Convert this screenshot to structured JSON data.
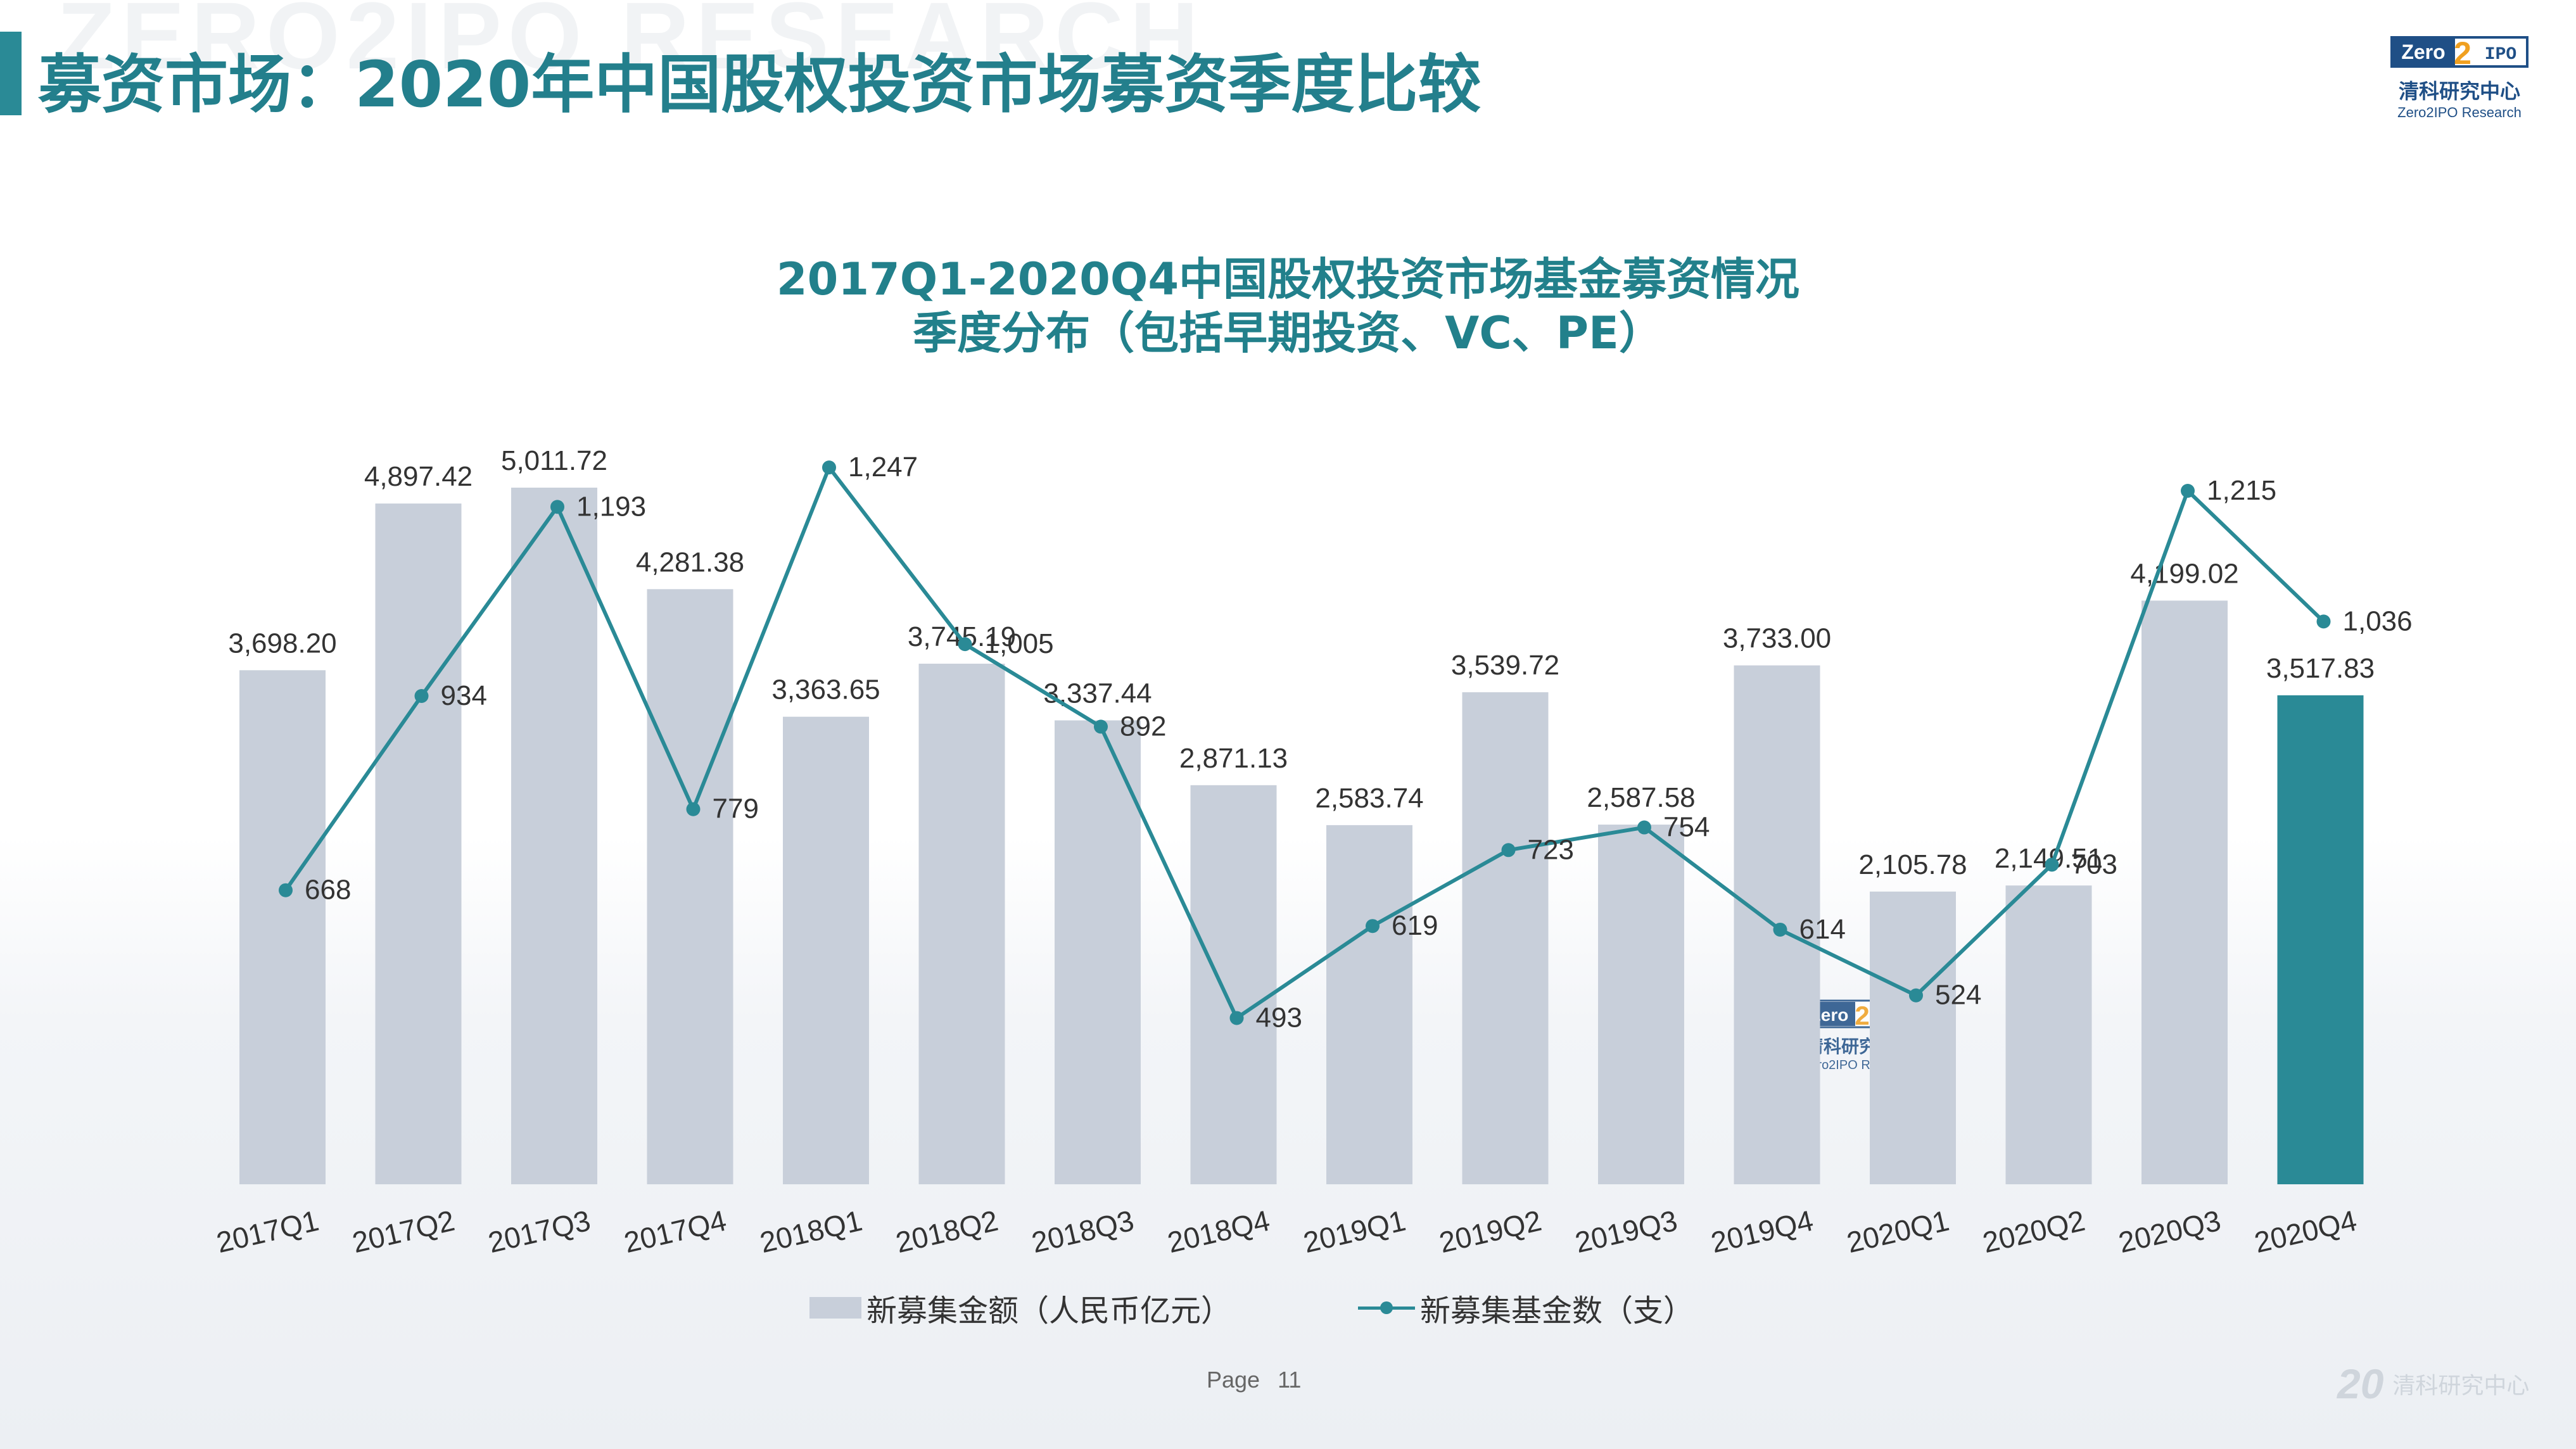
{
  "header": {
    "title": "募资市场：2020年中国股权投资市场募资季度比较",
    "watermark": "ZERO2IPO RESEARCH"
  },
  "logo": {
    "box_left": "Zero",
    "box_digit": "2",
    "box_right": "IPO",
    "cn_name": "清科研究中心",
    "en_name": "Zero2IPO Research"
  },
  "colors": {
    "accent": "#2a8a96",
    "title": "#22808b",
    "bar": "#c8cfda",
    "bar_highlight": "#2a8a96",
    "line": "#2a8a96"
  },
  "chart_data": {
    "type": "bar+line",
    "title_line1": "2017Q1-2020Q4中国股权投资市场基金募资情况",
    "title_line2": "季度分布（包括早期投资、VC、PE）",
    "categories": [
      "2017Q1",
      "2017Q2",
      "2017Q3",
      "2017Q4",
      "2018Q1",
      "2018Q2",
      "2018Q3",
      "2018Q4",
      "2019Q1",
      "2019Q2",
      "2019Q3",
      "2019Q4",
      "2020Q1",
      "2020Q2",
      "2020Q3",
      "2020Q4"
    ],
    "series": [
      {
        "name": "新募集金额（人民币亿元）",
        "type": "bar",
        "values": [
          3698.2,
          4897.42,
          5011.72,
          4281.38,
          3363.65,
          3745.19,
          3337.44,
          2871.13,
          2583.74,
          3539.72,
          2587.58,
          3733.0,
          2105.78,
          2149.51,
          4199.02,
          3517.83
        ],
        "labels": [
          "3,698.20",
          "4,897.42",
          "5,011.72",
          "4,281.38",
          "3,363.65",
          "3,745.19",
          "3,337.44",
          "2,871.13",
          "2,583.74",
          "3,539.72",
          "2,587.58",
          "3,733.00",
          "2,105.78",
          "2,149.51",
          "4,199.02",
          "3,517.83"
        ],
        "highlight_index": 15
      },
      {
        "name": "新募集基金数（支）",
        "type": "line",
        "values": [
          668,
          934,
          1193,
          779,
          1247,
          1005,
          892,
          493,
          619,
          723,
          754,
          614,
          524,
          703,
          1215,
          1036
        ],
        "labels": [
          "668",
          "934",
          "1,193",
          "779",
          "1,247",
          "1,005",
          "892",
          "493",
          "619",
          "723",
          "754",
          "614",
          "524",
          "703",
          "1,215",
          "1,036"
        ]
      }
    ]
  },
  "footer": {
    "page_label": "Page",
    "page_number": "11",
    "brand_number": "20",
    "brand_name": "清科研究中心"
  }
}
